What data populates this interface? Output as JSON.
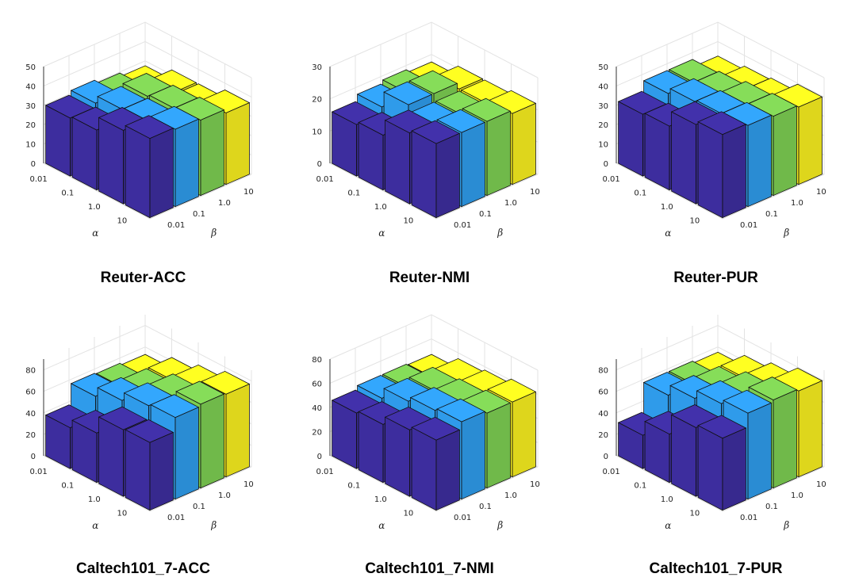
{
  "colors": {
    "alpha_0.01": "#3d2d9e",
    "alpha_0.1": "#2f9bea",
    "alpha_1.0": "#7ccd52",
    "alpha_10": "#f7ee1f",
    "grid": "#e3e3e3",
    "edge": "#111111"
  },
  "chart_data": [
    {
      "type": "bar3d",
      "title": "Reuter-ACC",
      "xlabel": "α",
      "ylabel": "β",
      "alpha_ticks": [
        "0.01",
        "0.1",
        "1.0",
        "10"
      ],
      "beta_ticks": [
        "0.01",
        "0.1",
        "1.0",
        "10"
      ],
      "z_ticks": [
        "0",
        "10",
        "20",
        "30",
        "40",
        "50"
      ],
      "zlim": [
        0,
        50
      ],
      "grid": true,
      "rows": [
        {
          "alpha": "0.01",
          "values": [
            30,
            32,
            30,
            28
          ]
        },
        {
          "alpha": "0.1",
          "values": [
            31,
            36,
            37,
            33
          ]
        },
        {
          "alpha": "1.0",
          "values": [
            38,
            37,
            38,
            33
          ]
        },
        {
          "alpha": "10",
          "values": [
            41,
            40,
            39,
            37
          ]
        }
      ]
    },
    {
      "type": "bar3d",
      "title": "Reuter-NMI",
      "xlabel": "α",
      "ylabel": "β",
      "alpha_ticks": [
        "0.01",
        "0.1",
        "1.0",
        "10"
      ],
      "beta_ticks": [
        "0.01",
        "0.1",
        "1.0",
        "10"
      ],
      "z_ticks": [
        "0",
        "10",
        "20",
        "30"
      ],
      "zlim": [
        0,
        30
      ],
      "grid": true,
      "rows": [
        {
          "alpha": "0.01",
          "values": [
            16,
            18,
            19,
            18
          ]
        },
        {
          "alpha": "0.1",
          "values": [
            17,
            23,
            23,
            21
          ]
        },
        {
          "alpha": "1.0",
          "values": [
            22,
            21,
            21,
            21
          ]
        },
        {
          "alpha": "10",
          "values": [
            23,
            23,
            23,
            22
          ]
        }
      ]
    },
    {
      "type": "bar3d",
      "title": "Reuter-PUR",
      "xlabel": "α",
      "ylabel": "β",
      "alpha_ticks": [
        "0.01",
        "0.1",
        "1.0",
        "10"
      ],
      "beta_ticks": [
        "0.01",
        "0.1",
        "1.0",
        "10"
      ],
      "z_ticks": [
        "0",
        "10",
        "20",
        "30",
        "40",
        "50"
      ],
      "zlim": [
        0,
        50
      ],
      "grid": true,
      "rows": [
        {
          "alpha": "0.01",
          "values": [
            32,
            37,
            37,
            33
          ]
        },
        {
          "alpha": "0.1",
          "values": [
            33,
            40,
            38,
            35
          ]
        },
        {
          "alpha": "1.0",
          "values": [
            41,
            41,
            40,
            36
          ]
        },
        {
          "alpha": "10",
          "values": [
            43,
            42,
            41,
            40
          ]
        }
      ]
    },
    {
      "type": "bar3d",
      "title": "Caltech101_7-ACC",
      "xlabel": "α",
      "ylabel": "β",
      "alpha_ticks": [
        "0.01",
        "0.1",
        "1.0",
        "10"
      ],
      "beta_ticks": [
        "0.01",
        "0.1",
        "1.0",
        "10"
      ],
      "z_ticks": [
        "0",
        "20",
        "40",
        "60",
        "80"
      ],
      "zlim": [
        0,
        90
      ],
      "grid": true,
      "rows": [
        {
          "alpha": "0.01",
          "values": [
            38,
            57,
            56,
            54
          ]
        },
        {
          "alpha": "0.1",
          "values": [
            46,
            66,
            64,
            64
          ]
        },
        {
          "alpha": "1.0",
          "values": [
            62,
            74,
            72,
            70
          ]
        },
        {
          "alpha": "10",
          "values": [
            63,
            76,
            78,
            77
          ]
        }
      ]
    },
    {
      "type": "bar3d",
      "title": "Caltech101_7-NMI",
      "xlabel": "α",
      "ylabel": "β",
      "alpha_ticks": [
        "0.01",
        "0.1",
        "1.0",
        "10"
      ],
      "beta_ticks": [
        "0.01",
        "0.1",
        "1.0",
        "10"
      ],
      "z_ticks": [
        "0",
        "20",
        "40",
        "60",
        "80"
      ],
      "zlim": [
        0,
        80
      ],
      "grid": true,
      "rows": [
        {
          "alpha": "0.01",
          "values": [
            46,
            49,
            49,
            48
          ]
        },
        {
          "alpha": "0.1",
          "values": [
            48,
            58,
            58,
            56
          ]
        },
        {
          "alpha": "1.0",
          "values": [
            55,
            62,
            60,
            58
          ]
        },
        {
          "alpha": "10",
          "values": [
            58,
            64,
            62,
            62
          ]
        }
      ]
    },
    {
      "type": "bar3d",
      "title": "Caltech101_7-PUR",
      "xlabel": "α",
      "ylabel": "β",
      "alpha_ticks": [
        "0.01",
        "0.1",
        "1.0",
        "10"
      ],
      "beta_ticks": [
        "0.01",
        "0.1",
        "1.0",
        "10"
      ],
      "z_ticks": [
        "0",
        "20",
        "40",
        "60",
        "80"
      ],
      "zlim": [
        0,
        90
      ],
      "grid": true,
      "rows": [
        {
          "alpha": "0.01",
          "values": [
            31,
            58,
            58,
            56
          ]
        },
        {
          "alpha": "0.1",
          "values": [
            45,
            68,
            66,
            66
          ]
        },
        {
          "alpha": "1.0",
          "values": [
            64,
            76,
            74,
            72
          ]
        },
        {
          "alpha": "10",
          "values": [
            67,
            80,
            82,
            80
          ]
        }
      ]
    }
  ]
}
